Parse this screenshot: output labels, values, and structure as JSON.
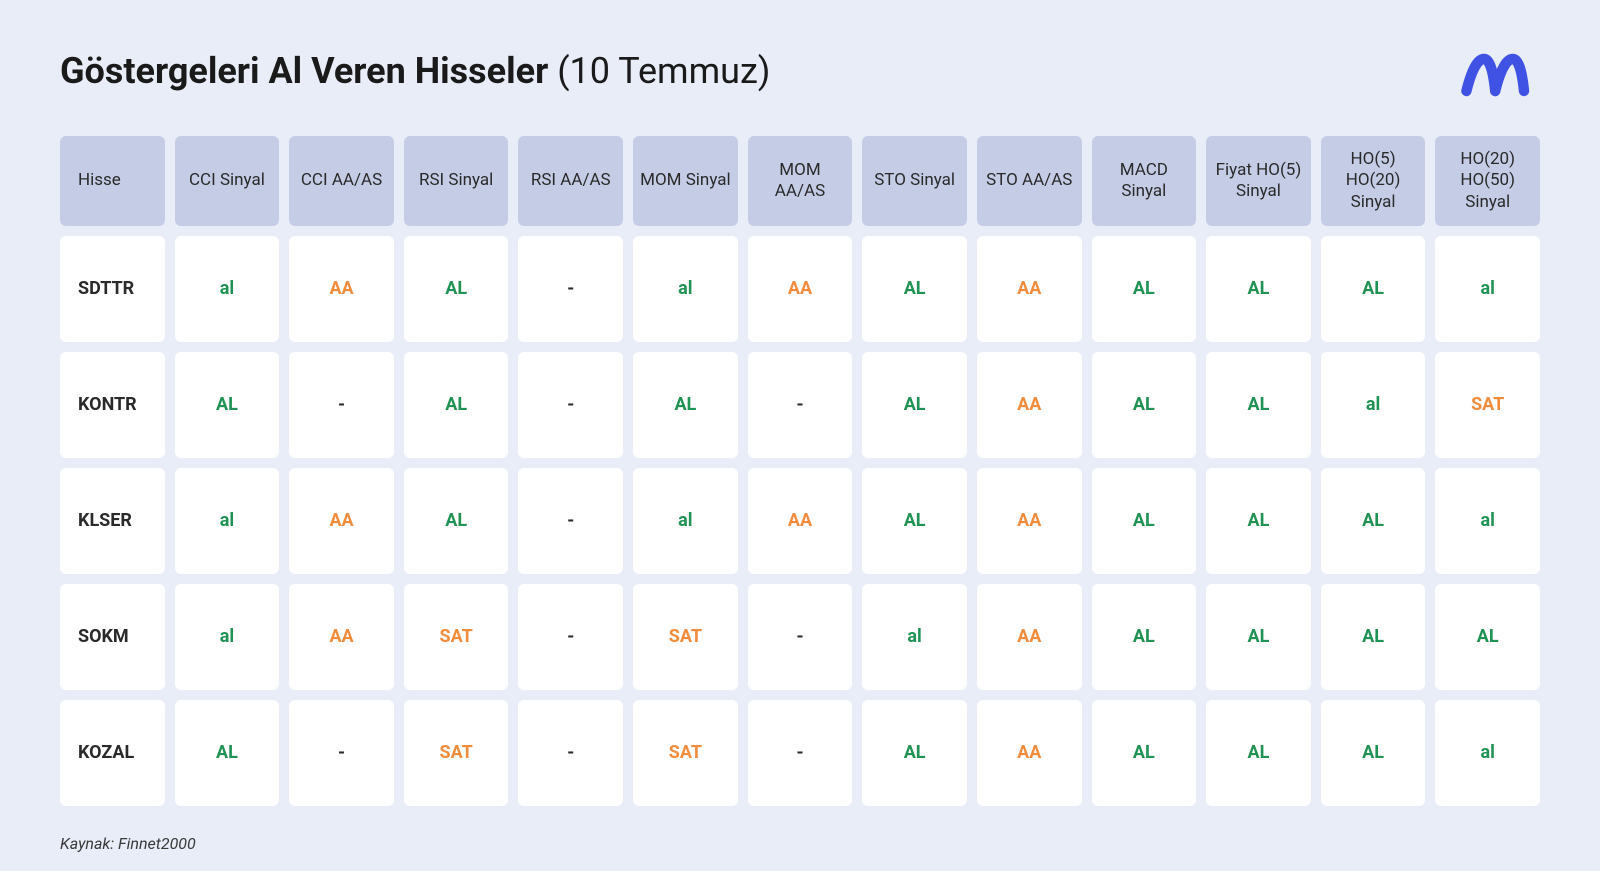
{
  "title_bold": "Göstergeleri Al Veren Hisseler",
  "title_paren": "(10 Temmuz)",
  "source_label": "Kaynak: Finnet2000",
  "logo_color": "#4052e3",
  "colors": {
    "background": "#e8edf7",
    "header_cell": "#c5cde6",
    "body_cell": "#ffffff",
    "text": "#1a1a1a",
    "green": "#1f9254",
    "orange": "#f08c3c",
    "dash": "#2a2a2a"
  },
  "columns": [
    "Hisse",
    "CCI Sinyal",
    "CCI AA/AS",
    "RSI Sinyal",
    "RSI AA/AS",
    "MOM Sinyal",
    "MOM AA/AS",
    "STO Sinyal",
    "STO AA/AS",
    "MACD Sinyal",
    "Fiyat HO(5) Sinyal",
    "HO(5) HO(20) Sinyal",
    "HO(20) HO(50) Sinyal"
  ],
  "rows": [
    {
      "ticker": "SDTTR",
      "cells": [
        {
          "v": "al",
          "c": "green"
        },
        {
          "v": "AA",
          "c": "orange"
        },
        {
          "v": "AL",
          "c": "green"
        },
        {
          "v": "-",
          "c": "dash"
        },
        {
          "v": "al",
          "c": "green"
        },
        {
          "v": "AA",
          "c": "orange"
        },
        {
          "v": "AL",
          "c": "green"
        },
        {
          "v": "AA",
          "c": "orange"
        },
        {
          "v": "AL",
          "c": "green"
        },
        {
          "v": "AL",
          "c": "green"
        },
        {
          "v": "AL",
          "c": "green"
        },
        {
          "v": "al",
          "c": "green"
        }
      ]
    },
    {
      "ticker": "KONTR",
      "cells": [
        {
          "v": "AL",
          "c": "green"
        },
        {
          "v": "-",
          "c": "dash"
        },
        {
          "v": "AL",
          "c": "green"
        },
        {
          "v": "-",
          "c": "dash"
        },
        {
          "v": "AL",
          "c": "green"
        },
        {
          "v": "-",
          "c": "dash"
        },
        {
          "v": "AL",
          "c": "green"
        },
        {
          "v": "AA",
          "c": "orange"
        },
        {
          "v": "AL",
          "c": "green"
        },
        {
          "v": "AL",
          "c": "green"
        },
        {
          "v": "al",
          "c": "green"
        },
        {
          "v": "SAT",
          "c": "orange"
        }
      ]
    },
    {
      "ticker": "KLSER",
      "cells": [
        {
          "v": "al",
          "c": "green"
        },
        {
          "v": "AA",
          "c": "orange"
        },
        {
          "v": "AL",
          "c": "green"
        },
        {
          "v": "-",
          "c": "dash"
        },
        {
          "v": "al",
          "c": "green"
        },
        {
          "v": "AA",
          "c": "orange"
        },
        {
          "v": "AL",
          "c": "green"
        },
        {
          "v": "AA",
          "c": "orange"
        },
        {
          "v": "AL",
          "c": "green"
        },
        {
          "v": "AL",
          "c": "green"
        },
        {
          "v": "AL",
          "c": "green"
        },
        {
          "v": "al",
          "c": "green"
        }
      ]
    },
    {
      "ticker": "SOKM",
      "cells": [
        {
          "v": "al",
          "c": "green"
        },
        {
          "v": "AA",
          "c": "orange"
        },
        {
          "v": "SAT",
          "c": "orange"
        },
        {
          "v": "-",
          "c": "dash"
        },
        {
          "v": "SAT",
          "c": "orange"
        },
        {
          "v": "-",
          "c": "dash"
        },
        {
          "v": "al",
          "c": "green"
        },
        {
          "v": "AA",
          "c": "orange"
        },
        {
          "v": "AL",
          "c": "green"
        },
        {
          "v": "AL",
          "c": "green"
        },
        {
          "v": "AL",
          "c": "green"
        },
        {
          "v": "AL",
          "c": "green"
        }
      ]
    },
    {
      "ticker": "KOZAL",
      "cells": [
        {
          "v": "AL",
          "c": "green"
        },
        {
          "v": "-",
          "c": "dash"
        },
        {
          "v": "SAT",
          "c": "orange"
        },
        {
          "v": "-",
          "c": "dash"
        },
        {
          "v": "SAT",
          "c": "orange"
        },
        {
          "v": "-",
          "c": "dash"
        },
        {
          "v": "AL",
          "c": "green"
        },
        {
          "v": "AA",
          "c": "orange"
        },
        {
          "v": "AL",
          "c": "green"
        },
        {
          "v": "AL",
          "c": "green"
        },
        {
          "v": "AL",
          "c": "green"
        },
        {
          "v": "al",
          "c": "green"
        }
      ]
    }
  ]
}
